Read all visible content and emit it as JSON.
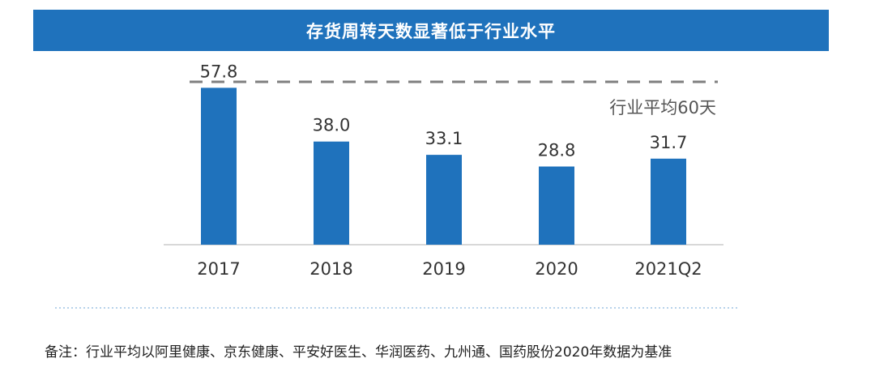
{
  "chart_data": {
    "type": "bar",
    "title": "存货周转天数显著低于行业水平",
    "categories": [
      "2017",
      "2018",
      "2019",
      "2020",
      "2021Q2"
    ],
    "values": [
      57.8,
      38.0,
      33.1,
      28.8,
      31.7
    ],
    "value_labels": [
      "57.8",
      "38.0",
      "33.1",
      "28.8",
      "31.7"
    ],
    "reference_line": {
      "value": 60,
      "label": "行业平均60天"
    },
    "ylim": [
      0,
      60
    ],
    "grid": false,
    "xlabel": "",
    "ylabel": ""
  },
  "footnote": "备注：行业平均以阿里健康、京东健康、平安好医生、华润医药、九州通、国药股份2020年数据为基准",
  "colors": {
    "banner": "#1f72bc",
    "bar": "#1f72bc",
    "reference_line": "#7f7f7f",
    "axis": "#cccccc",
    "text": "#333333",
    "separator": "#9fc3e3"
  }
}
